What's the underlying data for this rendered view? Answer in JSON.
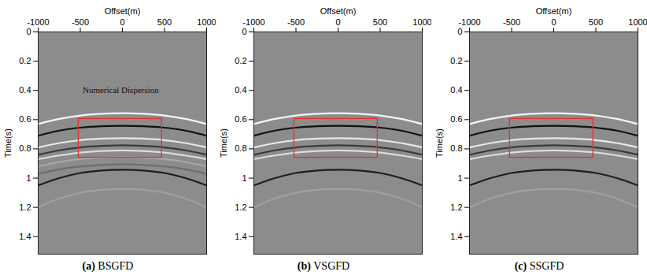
{
  "chart_data": [
    {
      "type": "line",
      "title": "(a) BSGFD",
      "x_label": "Offset(m)",
      "y_label": "Time(s)",
      "background": "#8c8c8c",
      "x": [
        -1000,
        -750,
        -500,
        -250,
        0,
        250,
        500,
        750,
        1000
      ],
      "series": [
        {
          "color": "#f4f4f4",
          "values": [
            0.63,
            0.595,
            0.572,
            0.56,
            0.556,
            0.56,
            0.572,
            0.595,
            0.63
          ]
        },
        {
          "color": "#111111",
          "values": [
            0.71,
            0.675,
            0.655,
            0.645,
            0.642,
            0.645,
            0.655,
            0.675,
            0.71
          ]
        },
        {
          "color": "#e8e8e8",
          "values": [
            0.79,
            0.76,
            0.74,
            0.73,
            0.727,
            0.73,
            0.74,
            0.76,
            0.79
          ]
        },
        {
          "color": "#3a3a3a",
          "values": [
            0.84,
            0.81,
            0.79,
            0.78,
            0.776,
            0.78,
            0.79,
            0.81,
            0.84
          ]
        },
        {
          "color": "#dcdcdc",
          "values": [
            0.87,
            0.845,
            0.825,
            0.815,
            0.81,
            0.815,
            0.825,
            0.845,
            0.87
          ]
        },
        {
          "color": "#a6a6a6",
          "values": [
            0.92,
            0.89,
            0.87,
            0.86,
            0.857,
            0.86,
            0.87,
            0.89,
            0.92
          ]
        },
        {
          "color": "#6e6e6e",
          "values": [
            0.97,
            0.94,
            0.92,
            0.91,
            0.905,
            0.91,
            0.92,
            0.94,
            0.97
          ]
        },
        {
          "color": "#1e1e1e",
          "values": [
            1.05,
            1.0,
            0.965,
            0.948,
            0.943,
            0.948,
            0.965,
            1.0,
            1.05
          ]
        },
        {
          "color": "#a0a0a0",
          "values": [
            1.2,
            1.14,
            1.1,
            1.08,
            1.075,
            1.08,
            1.1,
            1.14,
            1.2
          ]
        }
      ],
      "xlim": [
        -1000,
        1000
      ],
      "xticks": [
        -1000,
        -500,
        0,
        500,
        1000
      ],
      "ylim": [
        0,
        1.52
      ],
      "yticks": [
        0,
        0.2,
        0.4,
        0.6,
        0.8,
        1,
        1.2,
        1.4
      ],
      "annotations": [
        {
          "text": "Numerical Dispersion",
          "x": -20,
          "y": 0.4
        }
      ],
      "highlight": {
        "x": [
          -520,
          470
        ],
        "y": [
          0.595,
          0.86
        ],
        "color": "#e8302a"
      }
    },
    {
      "type": "line",
      "title": "(b) VSGFD",
      "x_label": "Offset(m)",
      "y_label": "Time(s)",
      "background": "#8c8c8c",
      "x": [
        -1000,
        -750,
        -500,
        -250,
        0,
        250,
        500,
        750,
        1000
      ],
      "series": [
        {
          "color": "#f4f4f4",
          "values": [
            0.63,
            0.595,
            0.572,
            0.56,
            0.556,
            0.56,
            0.572,
            0.595,
            0.63
          ]
        },
        {
          "color": "#111111",
          "values": [
            0.71,
            0.675,
            0.655,
            0.645,
            0.642,
            0.645,
            0.655,
            0.675,
            0.71
          ]
        },
        {
          "color": "#e8e8e8",
          "values": [
            0.79,
            0.76,
            0.74,
            0.73,
            0.727,
            0.73,
            0.74,
            0.76,
            0.79
          ]
        },
        {
          "color": "#3a3a3a",
          "values": [
            0.84,
            0.81,
            0.79,
            0.78,
            0.776,
            0.78,
            0.79,
            0.81,
            0.84
          ]
        },
        {
          "color": "#dcdcdc",
          "values": [
            0.87,
            0.845,
            0.825,
            0.815,
            0.81,
            0.815,
            0.825,
            0.845,
            0.87
          ]
        },
        {
          "color": "#1e1e1e",
          "values": [
            1.05,
            1.0,
            0.965,
            0.948,
            0.943,
            0.948,
            0.965,
            1.0,
            1.05
          ]
        },
        {
          "color": "#a0a0a0",
          "values": [
            1.2,
            1.14,
            1.1,
            1.08,
            1.075,
            1.08,
            1.1,
            1.14,
            1.2
          ]
        }
      ],
      "xlim": [
        -1000,
        1000
      ],
      "xticks": [
        -1000,
        -500,
        0,
        500,
        1000
      ],
      "ylim": [
        0,
        1.52
      ],
      "yticks": [
        0,
        0.2,
        0.4,
        0.6,
        0.8,
        1,
        1.2,
        1.4
      ],
      "highlight": {
        "x": [
          -520,
          470
        ],
        "y": [
          0.595,
          0.86
        ],
        "color": "#e8302a"
      }
    },
    {
      "type": "line",
      "title": "(c) SSGFD",
      "x_label": "Offset(m)",
      "y_label": "Time(s)",
      "background": "#8c8c8c",
      "x": [
        -1000,
        -750,
        -500,
        -250,
        0,
        250,
        500,
        750,
        1000
      ],
      "series": [
        {
          "color": "#f4f4f4",
          "values": [
            0.63,
            0.595,
            0.572,
            0.56,
            0.556,
            0.56,
            0.572,
            0.595,
            0.63
          ]
        },
        {
          "color": "#111111",
          "values": [
            0.71,
            0.675,
            0.655,
            0.645,
            0.642,
            0.645,
            0.655,
            0.675,
            0.71
          ]
        },
        {
          "color": "#e8e8e8",
          "values": [
            0.79,
            0.76,
            0.74,
            0.73,
            0.727,
            0.73,
            0.74,
            0.76,
            0.79
          ]
        },
        {
          "color": "#3a3a3a",
          "values": [
            0.84,
            0.81,
            0.79,
            0.78,
            0.776,
            0.78,
            0.79,
            0.81,
            0.84
          ]
        },
        {
          "color": "#dcdcdc",
          "values": [
            0.87,
            0.845,
            0.825,
            0.815,
            0.81,
            0.815,
            0.825,
            0.845,
            0.87
          ]
        },
        {
          "color": "#1e1e1e",
          "values": [
            1.05,
            1.0,
            0.965,
            0.948,
            0.943,
            0.948,
            0.965,
            1.0,
            1.05
          ]
        },
        {
          "color": "#a0a0a0",
          "values": [
            1.2,
            1.14,
            1.1,
            1.08,
            1.075,
            1.08,
            1.1,
            1.14,
            1.2
          ]
        }
      ],
      "xlim": [
        -1000,
        1000
      ],
      "xticks": [
        -1000,
        -500,
        0,
        500,
        1000
      ],
      "ylim": [
        0,
        1.52
      ],
      "yticks": [
        0,
        0.2,
        0.4,
        0.6,
        0.8,
        1,
        1.2,
        1.4
      ],
      "highlight": {
        "x": [
          -520,
          470
        ],
        "y": [
          0.595,
          0.86
        ],
        "color": "#e8302a"
      }
    }
  ]
}
